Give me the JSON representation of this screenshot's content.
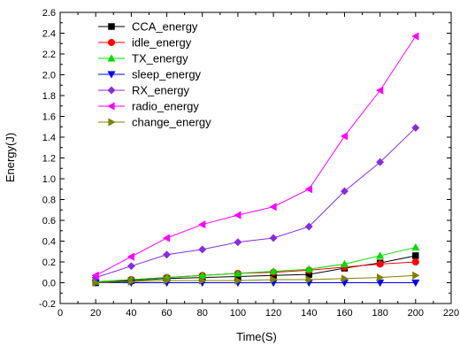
{
  "chart_data": {
    "type": "line",
    "xlabel": "Time(S)",
    "ylabel": "Energy(J)",
    "xlim": [
      0,
      220
    ],
    "ylim": [
      -0.2,
      2.6
    ],
    "xticks": [
      "0",
      "20",
      "40",
      "60",
      "80",
      "100",
      "120",
      "140",
      "160",
      "180",
      "200",
      "220"
    ],
    "yticks": [
      "-0.2",
      "0.0",
      "0.2",
      "0.4",
      "0.6",
      "0.8",
      "1.0",
      "1.2",
      "1.4",
      "1.6",
      "1.8",
      "2.0",
      "2.2",
      "2.4",
      "2.6"
    ],
    "grid": false,
    "legend_position": "top-left",
    "x": [
      20,
      40,
      60,
      80,
      100,
      120,
      140,
      160,
      180,
      200
    ],
    "series": [
      {
        "name": "CCA_energy",
        "color": "#000000",
        "marker": "square",
        "values": [
          0.0,
          0.02,
          0.04,
          0.05,
          0.06,
          0.07,
          0.08,
          0.14,
          0.19,
          0.26
        ]
      },
      {
        "name": "idle_energy",
        "color": "#ff0000",
        "marker": "circle",
        "values": [
          0.01,
          0.03,
          0.05,
          0.07,
          0.09,
          0.1,
          0.12,
          0.15,
          0.18,
          0.2
        ]
      },
      {
        "name": "TX_energy",
        "color": "#00dd00",
        "marker": "triangle-up",
        "values": [
          0.01,
          0.03,
          0.05,
          0.07,
          0.09,
          0.11,
          0.13,
          0.18,
          0.26,
          0.34
        ]
      },
      {
        "name": "sleep_energy",
        "color": "#0000ff",
        "marker": "triangle-down",
        "values": [
          0.0,
          0.0,
          0.0,
          0.0,
          0.0,
          0.0,
          0.0,
          0.0,
          0.0,
          0.0
        ]
      },
      {
        "name": "RX_energy",
        "color": "#8a2be2",
        "marker": "diamond",
        "values": [
          0.05,
          0.16,
          0.27,
          0.32,
          0.39,
          0.43,
          0.54,
          0.88,
          1.16,
          1.49
        ]
      },
      {
        "name": "radio_energy",
        "color": "#ff00ff",
        "marker": "triangle-left",
        "values": [
          0.07,
          0.25,
          0.43,
          0.56,
          0.65,
          0.73,
          0.9,
          1.41,
          1.85,
          2.37
        ]
      },
      {
        "name": "change_energy",
        "color": "#808000",
        "marker": "triangle-right",
        "values": [
          0.0,
          0.01,
          0.02,
          0.02,
          0.02,
          0.03,
          0.03,
          0.04,
          0.05,
          0.07
        ]
      }
    ]
  }
}
